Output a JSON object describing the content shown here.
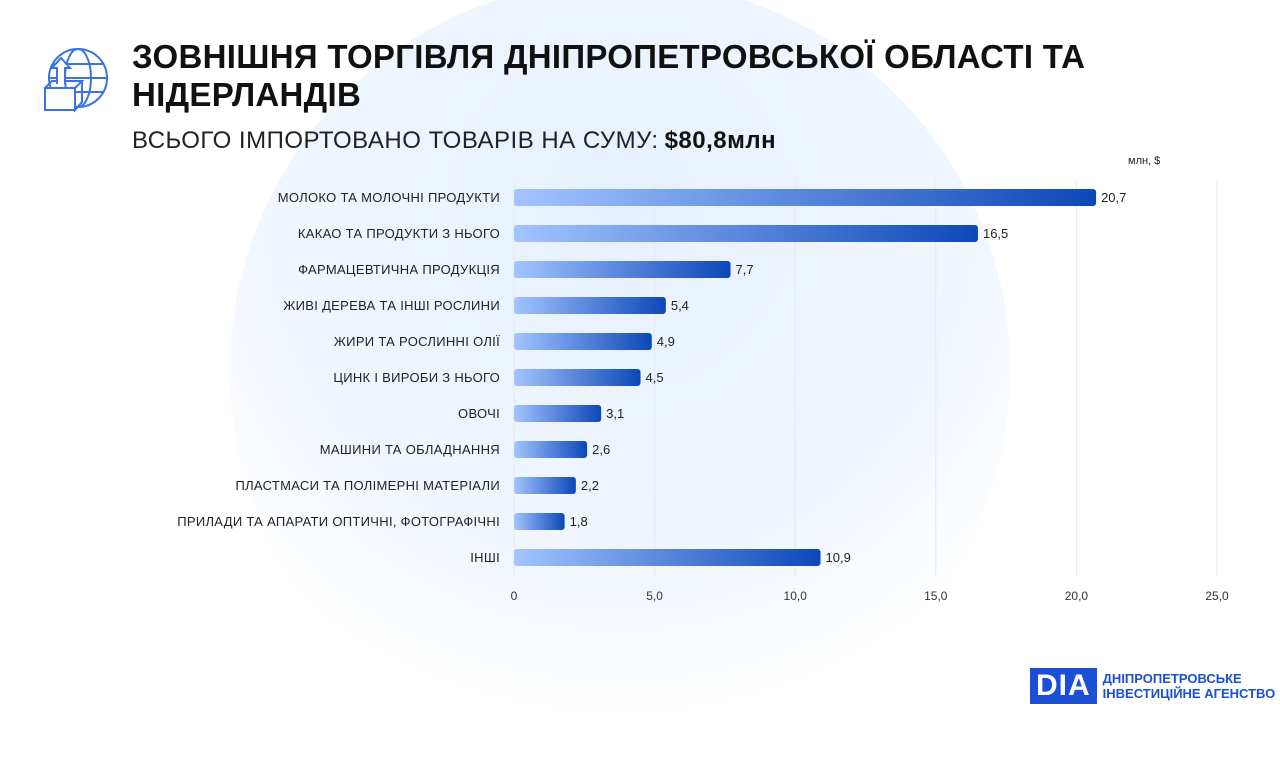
{
  "header": {
    "title_line1": "ЗОВНІШНЯ ТОРГІВЛЯ ДНІПРОПЕТРОВСЬКОЇ ОБЛАСТІ ТА",
    "title_line2": "НІДЕРЛАНДІВ",
    "subtitle_label": "ВСЬОГО ІМПОРТОВАНО ТОВАРІВ НА СУМУ:",
    "subtitle_value": "$80,8млн",
    "icon": "globe-box-upload-icon"
  },
  "logo": {
    "mark": "DIA",
    "line1": "ДНІПРОПЕТРОВСЬКЕ",
    "line2": "ІНВЕСТИЦІЙНЕ АГЕНСТВО"
  },
  "colors": {
    "bar_start": "#a3c4ff",
    "bar_end": "#0d47b8",
    "accent": "#1a4fd6"
  },
  "chart_data": {
    "type": "bar",
    "orientation": "horizontal",
    "unit_label": "млн, $",
    "categories": [
      "МОЛОКО ТА МОЛОЧНІ ПРОДУКТИ",
      "КАКАО ТА ПРОДУКТИ З НЬОГО",
      "ФАРМАЦЕВТИЧНА ПРОДУКЦІЯ",
      "ЖИВІ ДЕРЕВА ТА ІНШІ РОСЛИНИ",
      "ЖИРИ ТА РОСЛИННІ ОЛІЇ",
      "ЦИНК І ВИРОБИ З НЬОГО",
      "ОВОЧІ",
      "МАШИНИ ТА ОБЛАДНАННЯ",
      "ПЛАСТМАСИ ТА ПОЛІМЕРНІ МАТЕРІАЛИ",
      "ПРИЛАДИ ТА АПАРАТИ ОПТИЧНІ, ФОТОГРАФІЧНІ",
      "ІНШІ"
    ],
    "values": [
      20.7,
      16.5,
      7.7,
      5.4,
      4.9,
      4.5,
      3.1,
      2.6,
      2.2,
      1.8,
      10.9
    ],
    "value_labels": [
      "20,7",
      "16,5",
      "7,7",
      "5,4",
      "4,9",
      "4,5",
      "3,1",
      "2,6",
      "2,2",
      "1,8",
      "10,9"
    ],
    "xlim": [
      0,
      25
    ],
    "xticks": [
      0,
      5,
      10,
      15,
      20,
      25
    ],
    "xtick_labels": [
      "0",
      "5,0",
      "10,0",
      "15,0",
      "20,0",
      "25,0"
    ],
    "grid": true
  }
}
